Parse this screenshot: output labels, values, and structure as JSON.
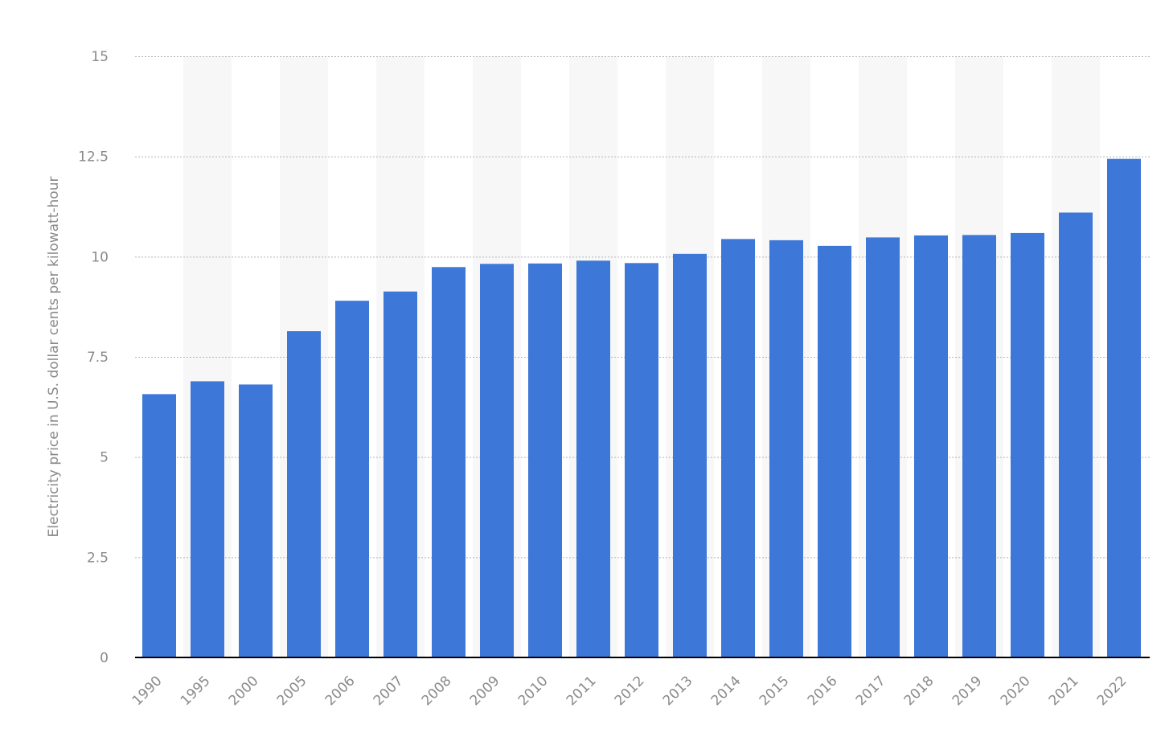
{
  "chart_data": {
    "type": "bar",
    "categories": [
      "1990",
      "1995",
      "2000",
      "2005",
      "2006",
      "2007",
      "2008",
      "2009",
      "2010",
      "2011",
      "2012",
      "2013",
      "2014",
      "2015",
      "2016",
      "2017",
      "2018",
      "2019",
      "2020",
      "2021",
      "2022"
    ],
    "values": [
      6.57,
      6.89,
      6.81,
      8.14,
      8.9,
      9.13,
      9.74,
      9.82,
      9.83,
      9.9,
      9.84,
      10.07,
      10.44,
      10.41,
      10.27,
      10.48,
      10.53,
      10.54,
      10.59,
      11.1,
      12.44
    ],
    "title": "",
    "xlabel": "",
    "ylabel": "Electricity price in U.S. dollar cents per kilowatt-hour",
    "ylim": [
      0,
      15
    ],
    "yticks": [
      0,
      2.5,
      5,
      7.5,
      10,
      12.5,
      15
    ],
    "ytick_labels": [
      "0",
      "2.5",
      "5",
      "7.5",
      "10",
      "12.5",
      "15"
    ],
    "grid": true,
    "legend": "none",
    "bar_color": "#3d77d8",
    "band_color": "#f7f7f7"
  }
}
